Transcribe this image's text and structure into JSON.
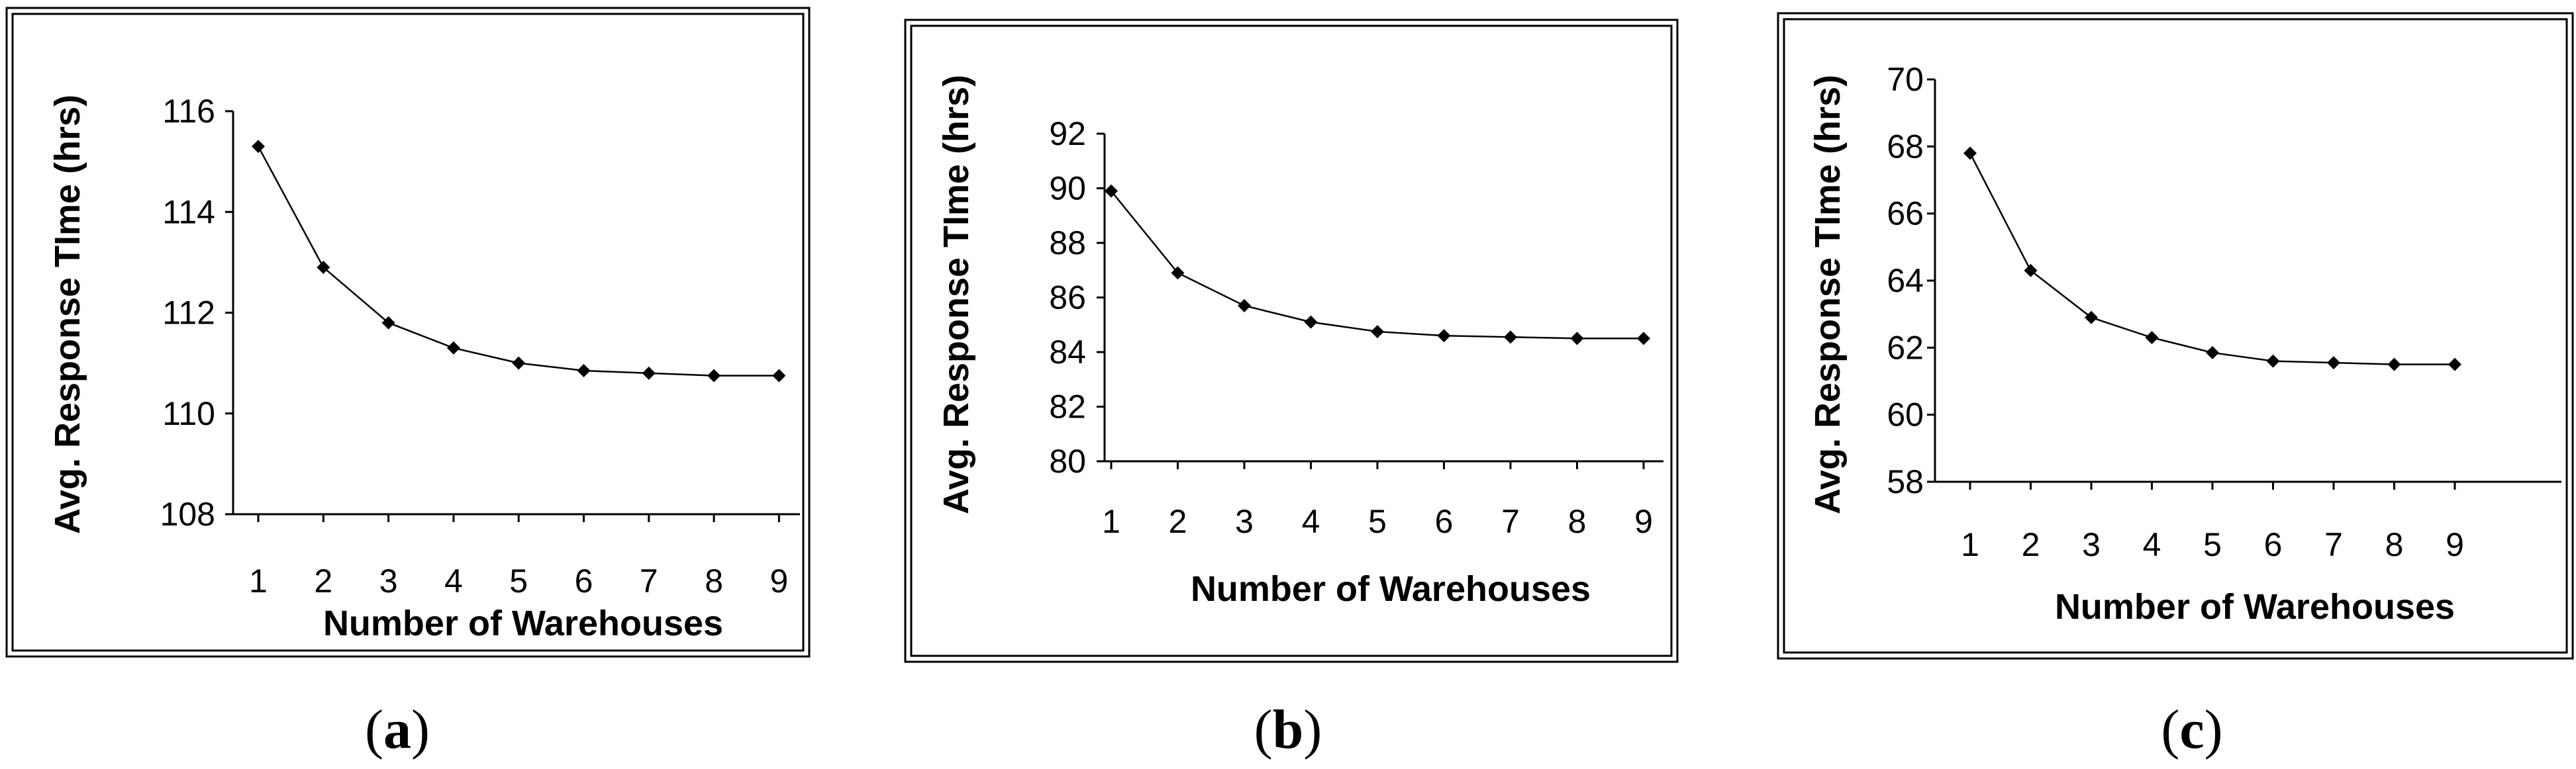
{
  "chart_data": [
    {
      "type": "line",
      "panel_label": "a",
      "xlabel": "Number of Warehouses",
      "ylabel": "Avg. Response TIme (hrs)",
      "x": [
        1,
        2,
        3,
        4,
        5,
        6,
        7,
        8,
        9
      ],
      "ylim": [
        108,
        116
      ],
      "yticks": [
        108,
        110,
        112,
        114,
        116
      ],
      "grid": false,
      "series": [
        {
          "values": [
            115.3,
            112.9,
            111.8,
            111.3,
            111.0,
            110.85,
            110.8,
            110.75,
            110.75
          ]
        }
      ]
    },
    {
      "type": "line",
      "panel_label": "b",
      "xlabel": "Number of Warehouses",
      "ylabel": "Avg. Response TIme (hrs)",
      "x": [
        1,
        2,
        3,
        4,
        5,
        6,
        7,
        8,
        9
      ],
      "ylim": [
        80,
        92
      ],
      "yticks": [
        80,
        82,
        84,
        86,
        88,
        90,
        92
      ],
      "grid": false,
      "series": [
        {
          "values": [
            89.9,
            86.9,
            85.7,
            85.1,
            84.75,
            84.6,
            84.55,
            84.5,
            84.5
          ]
        }
      ]
    },
    {
      "type": "line",
      "panel_label": "c",
      "xlabel": "Number of Warehouses",
      "ylabel": "Avg. Response TIme (hrs)",
      "x": [
        1,
        2,
        3,
        4,
        5,
        6,
        7,
        8,
        9
      ],
      "ylim": [
        58,
        70
      ],
      "yticks": [
        58,
        60,
        62,
        64,
        66,
        68,
        70
      ],
      "grid": false,
      "series": [
        {
          "values": [
            67.8,
            64.3,
            62.9,
            62.3,
            61.85,
            61.6,
            61.55,
            61.5,
            61.5
          ]
        }
      ]
    }
  ]
}
